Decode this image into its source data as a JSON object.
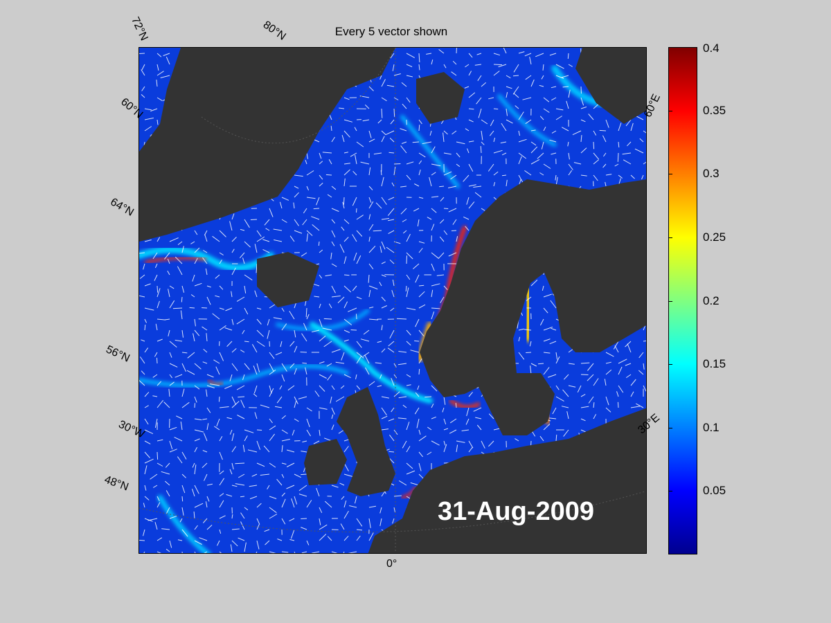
{
  "title": "Every 5 vector shown",
  "date": "31-Aug-2009",
  "lat_labels": [
    "72°N",
    "60°N",
    "64°N",
    "56°N",
    "48°N"
  ],
  "lat_labels_top": [
    "80°N"
  ],
  "lon_labels": [
    "30°W",
    "0°",
    "30°E",
    "60°E"
  ],
  "colorbar": {
    "ticks": [
      "0.4",
      "0.35",
      "0.3",
      "0.25",
      "0.2",
      "0.15",
      "0.1",
      "0.05"
    ],
    "min": 0,
    "max": 0.4,
    "colormap": "jet"
  },
  "colors": {
    "land": "#333333",
    "ocean_base": "#0a3cdc",
    "vector": "#ffffff",
    "figure_bg": "#cccccc"
  }
}
